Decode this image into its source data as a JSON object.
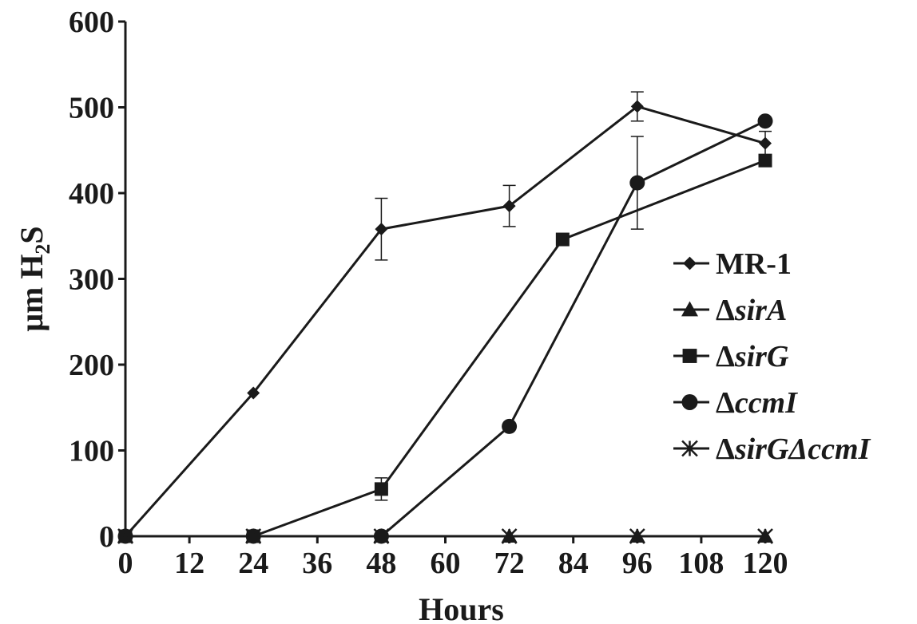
{
  "chart_data": {
    "type": "line",
    "xlabel": "Hours",
    "ylabel_main": "μm H",
    "ylabel_sub": "2",
    "ylabel_tail": "S",
    "xlim": [
      0,
      120
    ],
    "ylim": [
      0,
      600
    ],
    "x_ticks": [
      "0",
      "12",
      "24",
      "36",
      "48",
      "60",
      "72",
      "84",
      "96",
      "108",
      "120"
    ],
    "y_ticks": [
      "0",
      "100",
      "200",
      "300",
      "400",
      "500",
      "600"
    ],
    "grid": false,
    "legend_position": "right",
    "series": [
      {
        "name": "MR-1",
        "marker": "diamond",
        "x": [
          0,
          24,
          48,
          72,
          96,
          120
        ],
        "y": [
          0,
          167,
          358,
          385,
          501,
          458
        ],
        "err": [
          0,
          0,
          36,
          24,
          17,
          14
        ]
      },
      {
        "name": "ΔsirA",
        "italic": "sirA",
        "marker": "triangle",
        "x": [
          0,
          24,
          48,
          72,
          96,
          120
        ],
        "y": [
          0,
          0,
          0,
          0,
          0,
          0
        ],
        "err": [
          0,
          0,
          0,
          0,
          0,
          0
        ]
      },
      {
        "name": "ΔsirG",
        "italic": "sirG",
        "marker": "square",
        "x": [
          0,
          24,
          48,
          82,
          120
        ],
        "y": [
          0,
          0,
          55,
          346,
          438
        ],
        "err": [
          0,
          0,
          13,
          0,
          0
        ]
      },
      {
        "name": "ΔccmI",
        "italic": "ccmI",
        "marker": "circle",
        "x": [
          0,
          24,
          48,
          72,
          96,
          120
        ],
        "y": [
          0,
          0,
          0,
          128,
          412,
          484
        ],
        "err": [
          0,
          0,
          0,
          0,
          54,
          0
        ]
      },
      {
        "name": "ΔsirGΔccmI",
        "italic": "sirGΔccmI",
        "marker": "star",
        "x": [
          0,
          24,
          48,
          72,
          96,
          120
        ],
        "y": [
          0,
          0,
          0,
          0,
          0,
          0
        ],
        "err": [
          0,
          0,
          0,
          0,
          0,
          0
        ]
      }
    ]
  }
}
